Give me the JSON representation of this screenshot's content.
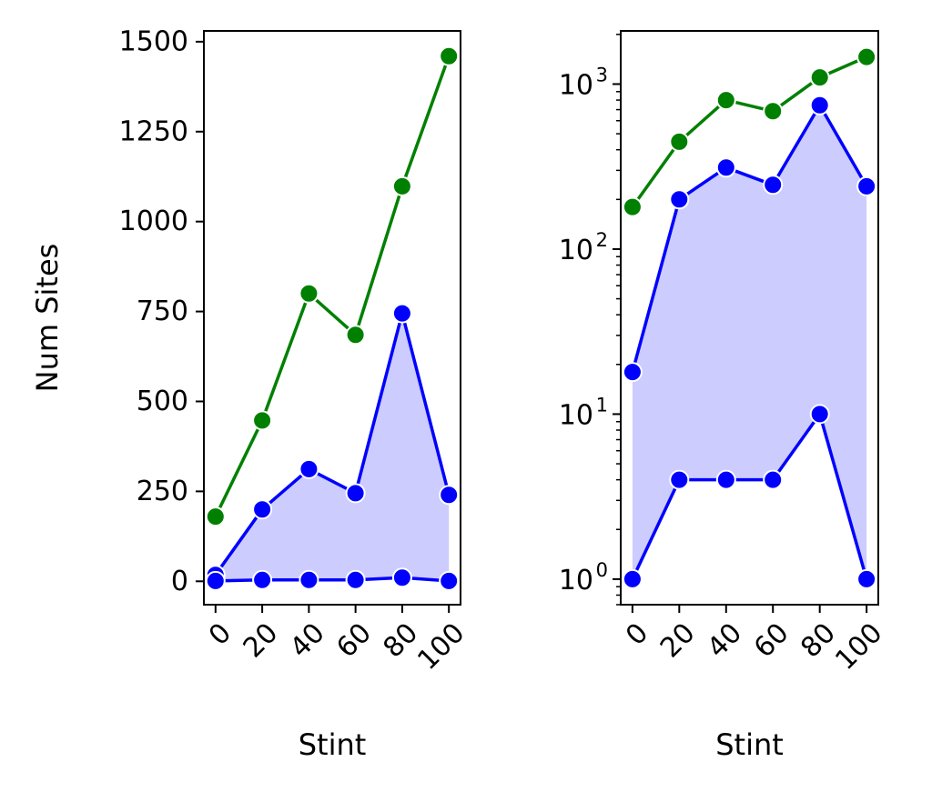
{
  "chart_data": [
    {
      "type": "line",
      "yscale": "linear",
      "xlabel": "Stint",
      "ylabel": "Num Sites",
      "x": [
        0,
        20,
        40,
        60,
        80,
        100
      ],
      "xticks": [
        "0",
        "20",
        "40",
        "60",
        "80",
        "100"
      ],
      "yticks": [
        "0",
        "250",
        "500",
        "750",
        "1000",
        "1250",
        "1500"
      ],
      "ylim": [
        -65,
        1530
      ],
      "xlim": [
        -5,
        105
      ],
      "series": [
        {
          "color": "#008000",
          "values": [
            180,
            447,
            800,
            685,
            1098,
            1460
          ]
        },
        {
          "color": "#0000ff",
          "values": [
            18,
            200,
            312,
            245,
            745,
            240
          ]
        },
        {
          "color": "#0000ff",
          "values": [
            1,
            4,
            4,
            4,
            10,
            1
          ]
        }
      ],
      "fill_between": {
        "color": "#ccccff",
        "lower_series": 2,
        "upper_series": 1
      },
      "grid": false
    },
    {
      "type": "line",
      "yscale": "log",
      "xlabel": "Stint",
      "ylabel": "",
      "x": [
        0,
        20,
        40,
        60,
        80,
        100
      ],
      "xticks": [
        "0",
        "20",
        "40",
        "60",
        "80",
        "100"
      ],
      "yticks": [
        {
          "base": "10",
          "exp": "0"
        },
        {
          "base": "10",
          "exp": "1"
        },
        {
          "base": "10",
          "exp": "2"
        },
        {
          "base": "10",
          "exp": "3"
        }
      ],
      "ylim": [
        0.7,
        2100
      ],
      "xlim": [
        -5,
        105
      ],
      "series": [
        {
          "color": "#008000",
          "values": [
            180,
            447,
            800,
            685,
            1098,
            1460
          ]
        },
        {
          "color": "#0000ff",
          "values": [
            18,
            200,
            312,
            245,
            745,
            240
          ]
        },
        {
          "color": "#0000ff",
          "values": [
            1,
            4,
            4,
            4,
            10,
            1
          ]
        }
      ],
      "fill_between": {
        "color": "#ccccff",
        "lower_series": 2,
        "upper_series": 1
      },
      "grid": false
    }
  ]
}
